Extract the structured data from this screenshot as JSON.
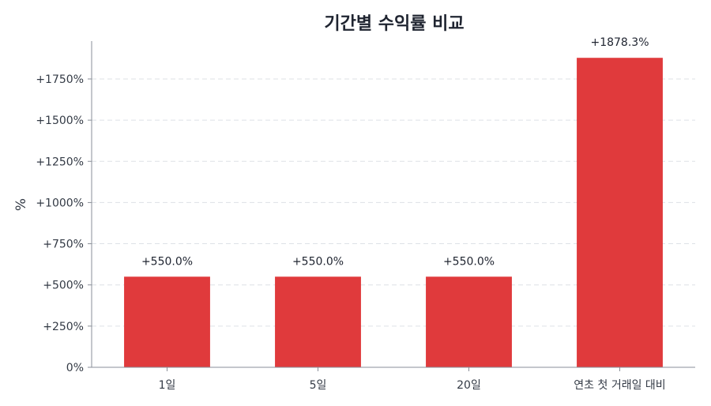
{
  "chart_data": {
    "type": "bar",
    "title": "기간별 수익률 비교",
    "xlabel": "",
    "ylabel": "%",
    "categories": [
      "1일",
      "5일",
      "20일",
      "연초 첫 거래일 대비"
    ],
    "values": [
      550.0,
      550.0,
      550.0,
      1878.3
    ],
    "data_labels": [
      "+550.0%",
      "+550.0%",
      "+550.0%",
      "+1878.3%"
    ],
    "ylim": [
      0,
      1980
    ],
    "yticks": [
      0,
      250,
      500,
      750,
      1000,
      1250,
      1500,
      1750
    ],
    "ytick_labels": [
      "0%",
      "+250%",
      "+500%",
      "+750%",
      "+1000%",
      "+1250%",
      "+1500%",
      "+1750%"
    ],
    "grid": true,
    "bar_color": "#e03a3c",
    "grid_color": "#dde1e6"
  }
}
